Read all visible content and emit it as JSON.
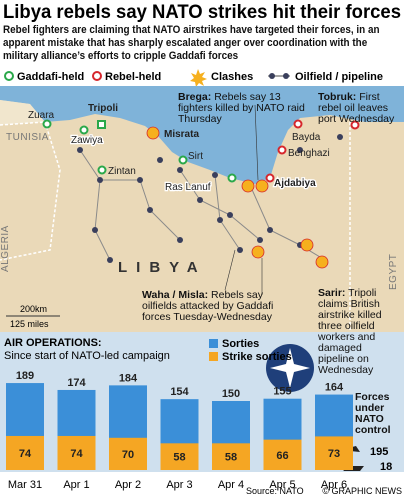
{
  "title": "Libya rebels say NATO strikes hit their forces",
  "subtitle": "Rebel fighters are claiming that NATO airstrikes have targeted their forces, in an apparent mistake that has sharply escalated anger over coordination with the military alliance’s efforts to cripple Gaddafi forces",
  "legend": [
    "Gaddafi-held",
    "Rebel-held",
    "Clashes",
    "Oilfield / pipeline"
  ],
  "map": {
    "countries": [
      "TUNISIA",
      "ALGERIA",
      "EGYPT",
      "LIBYA"
    ],
    "places": [
      "Zuara",
      "Tripoli",
      "Zawiya",
      "Zintan",
      "Misrata",
      "Sirt",
      "Ras Lanuf",
      "Bayda",
      "Benghazi",
      "Ajdabiya"
    ],
    "annotations": [
      {
        "place": "Brega:",
        "text": "Rebels say 13 fighters killed by NATO raid Thursday"
      },
      {
        "place": "Tobruk:",
        "text": "First rebel oil leaves port Wednesday"
      },
      {
        "place": "Waha / Misla:",
        "text": "Rebels say oilfields attacked by Gaddafi forces Tuesday-Wednesday"
      },
      {
        "place": "Sarir:",
        "text": "Tripoli claims British airstrike killed three oilfield workers and damaged pipeline on Wednesday"
      }
    ],
    "scale": [
      "200km",
      "125 miles"
    ]
  },
  "chart_data": {
    "type": "bar",
    "title": "AIR OPERATIONS:",
    "subtitle": "Since start of NATO-led campaign",
    "categories": [
      "Mar 31",
      "Apr 1",
      "Apr 2",
      "Apr 3",
      "Apr 4",
      "Apr 5",
      "Apr 6"
    ],
    "series": [
      {
        "name": "Sorties",
        "color": "#3b8fd8",
        "values": [
          189,
          174,
          184,
          154,
          150,
          155,
          164
        ]
      },
      {
        "name": "Strike sorties",
        "color": "#f5a623",
        "values": [
          74,
          74,
          70,
          58,
          58,
          66,
          73
        ]
      }
    ]
  },
  "forces": {
    "title": "Forces under NATO control",
    "values": [
      195,
      18
    ]
  },
  "source": "Source: NATO",
  "credit": "© GRAPHIC NEWS"
}
